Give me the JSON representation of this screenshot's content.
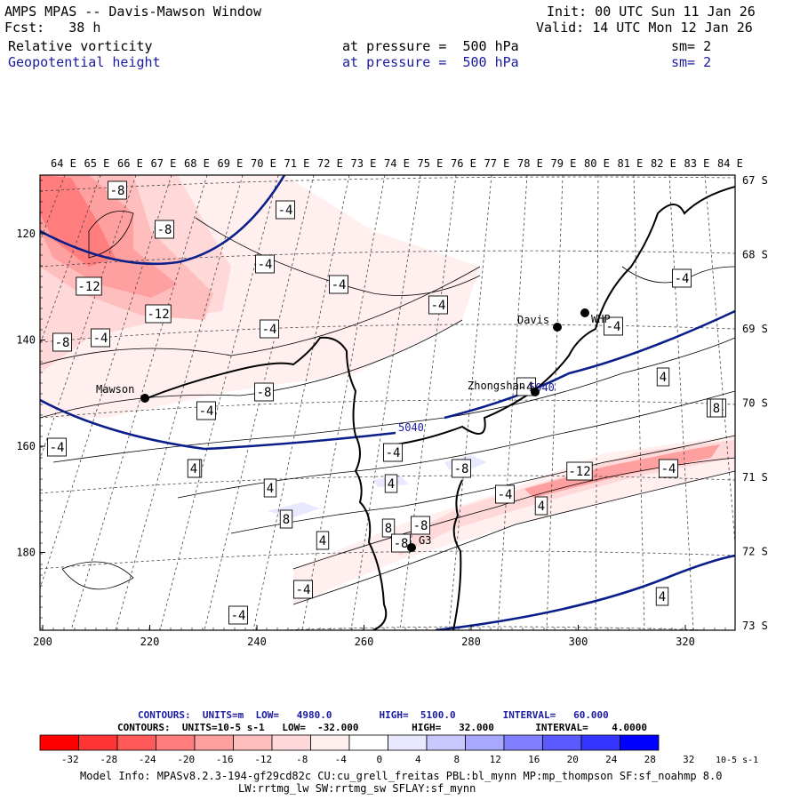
{
  "header": {
    "title": "AMPS MPAS -- Davis-Mawson Window",
    "fcst_label": "Fcst:",
    "fcst_value": "38 h",
    "init": "Init: 00 UTC Sun 11 Jan 26",
    "valid": "Valid: 14 UTC Mon 12 Jan 26",
    "field1": {
      "name": "Relative vorticity",
      "level": "at pressure =  500 hPa",
      "sm": "sm= 2"
    },
    "field2": {
      "name": "Geopotential height",
      "level": "at pressure =  500 hPa",
      "sm": "sm= 2"
    }
  },
  "axes": {
    "top_lon": [
      "64 E",
      "65 E",
      "66 E",
      "67 E",
      "68 E",
      "69 E",
      "70 E",
      "71 E",
      "72 E",
      "73 E",
      "74 E",
      "75 E",
      "76 E",
      "77 E",
      "78 E",
      "79 E",
      "80 E",
      "81 E",
      "82 E",
      "83 E",
      "84 E"
    ],
    "right_lat": [
      "67 S",
      "68 S",
      "69 S",
      "70 S",
      "71 S",
      "72 S",
      "73 S"
    ],
    "bottom_x": [
      "200",
      "220",
      "240",
      "260",
      "280",
      "300",
      "320"
    ],
    "left_y": [
      "120",
      "140",
      "160",
      "180"
    ]
  },
  "stations": [
    {
      "name": "Mawson"
    },
    {
      "name": "Davis"
    },
    {
      "name": "WHP"
    },
    {
      "name": "Zhongshan"
    },
    {
      "name": "G3"
    }
  ],
  "height_labels": [
    "5040",
    "5040"
  ],
  "vort_labels": [
    "-8",
    "-8",
    "-12",
    "-12",
    "-8",
    "-4",
    "-4",
    "-4",
    "-4",
    "-4",
    "-4",
    "-4",
    "-8",
    "-4",
    "-4",
    "-4",
    "4",
    "-4",
    "-8",
    "-12",
    "-4",
    "4",
    "-4",
    "4",
    "4",
    "4",
    "8",
    "8",
    "8",
    "4",
    "-4",
    "-8",
    "-8",
    "-4",
    "4",
    "-4",
    "-4",
    "4"
  ],
  "colorbar": {
    "ticks": [
      "-32",
      "-28",
      "-24",
      "-20",
      "-16",
      "-12",
      "-8",
      "-4",
      "0",
      "4",
      "8",
      "12",
      "16",
      "20",
      "24",
      "28",
      "32"
    ],
    "unit": "10-5 s-1",
    "colors": [
      "#ff0000",
      "#ff3535",
      "#ff5959",
      "#ff7d7d",
      "#ffa0a0",
      "#ffbebe",
      "#ffd9d9",
      "#ffefef",
      "#ffffff",
      "#ffffff",
      "#e8e8ff",
      "#c8c8ff",
      "#a8a8ff",
      "#8080ff",
      "#5a5aff",
      "#3535ff",
      "#0000ff"
    ]
  },
  "contours_info": {
    "line1": "CONTOURS:  UNITS=m  LOW=   4980.0        HIGH=  5100.0        INTERVAL=   60.000",
    "line2": "CONTOURS:  UNITS=10-5 s-1   LOW=  -32.000         HIGH=   32.000       INTERVAL=    4.0000"
  },
  "model_info": {
    "line1": "Model Info: MPASv8.2.3-194-gf29cd82c CU:cu_grell_freitas PBL:bl_mynn MP:mp_thompson SF:sf_noahmp 8.0",
    "line2": "LW:rrtmg_lw SW:rrtmg_sw SFLAY:sf_mynn"
  }
}
